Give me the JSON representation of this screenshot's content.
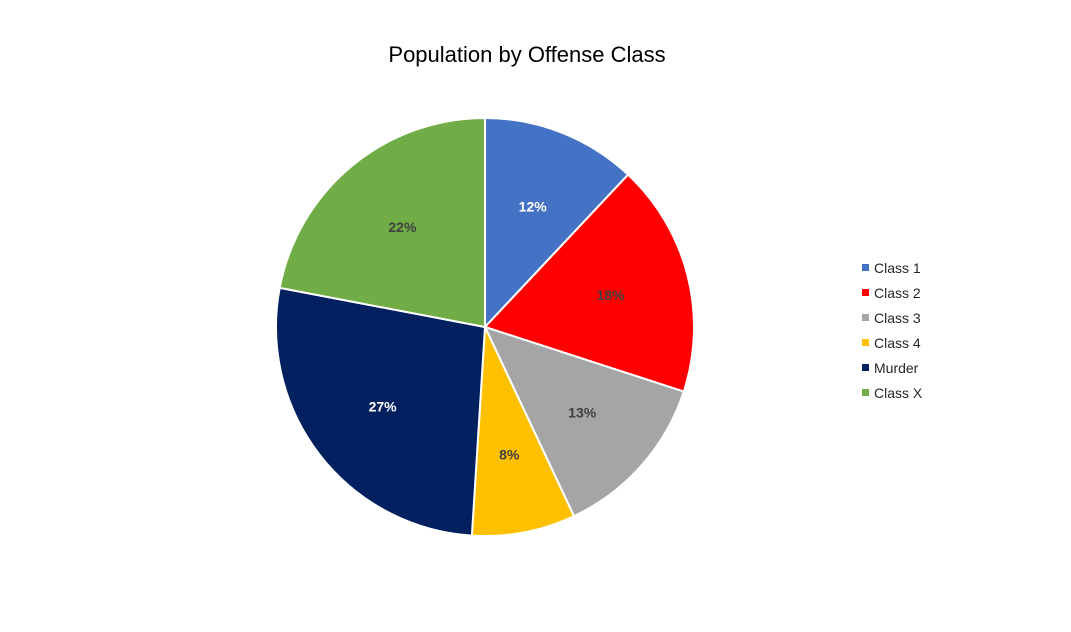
{
  "chart_data": {
    "type": "pie",
    "title": "Population by Offense Class",
    "legend_position": "right",
    "categories": [
      "Class 1",
      "Class 2",
      "Class 3",
      "Class 4",
      "Murder",
      "Class X"
    ],
    "values": [
      12,
      18,
      13,
      8,
      27,
      22
    ],
    "data_labels": [
      "12%",
      "18%",
      "13%",
      "8%",
      "27%",
      "22%"
    ],
    "colors": [
      "#4472C4",
      "#FF0000",
      "#A5A5A5",
      "#FFC000",
      "#002060",
      "#70AD47"
    ],
    "label_colors": [
      "#FFFFFF",
      "#404040",
      "#404040",
      "#404040",
      "#FFFFFF",
      "#404040"
    ]
  }
}
